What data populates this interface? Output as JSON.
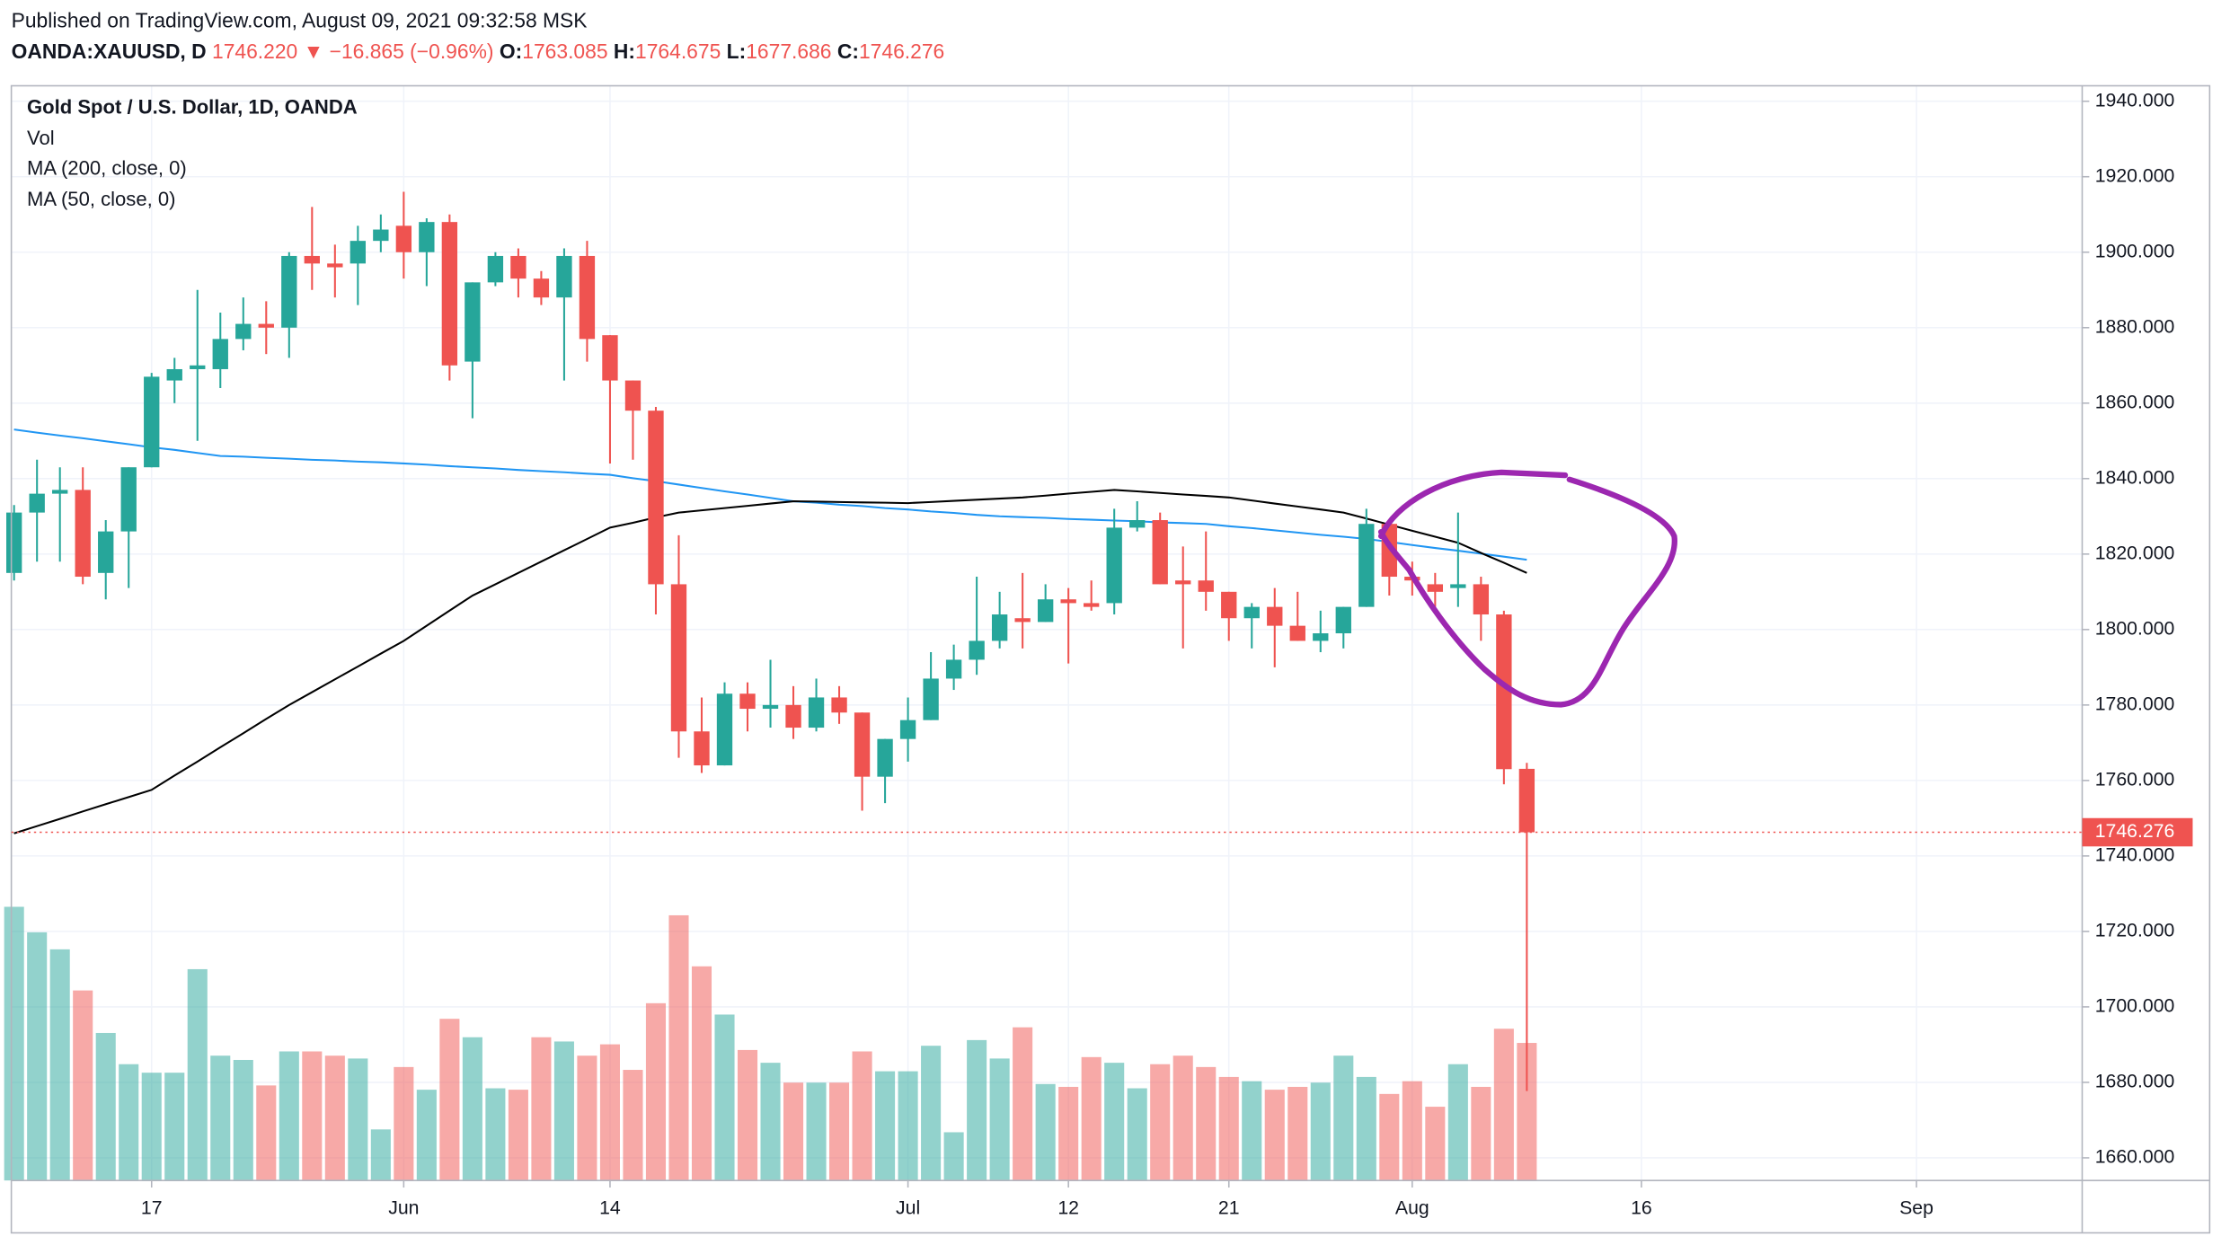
{
  "header": {
    "published": "Published on TradingView.com, August 09, 2021 09:32:58 MSK",
    "symbol": "OANDA:XAUUSD, D",
    "last": "1746.220",
    "arrow": "▼",
    "change": "−16.865 (−0.96%)",
    "o": "O:",
    "h": "H:",
    "l": "L:",
    "c": "C:"
  },
  "chart_data": {
    "type": "candlestick",
    "title": "Gold Spot / U.S. Dollar, 1D, OANDA",
    "volume_label": "Vol",
    "up_color": "#26a69a",
    "down_color": "#ef5350",
    "open": [
      1815,
      1831,
      1836,
      1837,
      1815,
      1826,
      1843,
      1866,
      1869,
      1869,
      1877,
      1881,
      1880,
      1899,
      1897,
      1897,
      1903,
      1907,
      1900,
      1908,
      1871,
      1892,
      1899,
      1893,
      1888,
      1899,
      1878,
      1866,
      1858,
      1812,
      1773,
      1764,
      1783,
      1779,
      1780,
      1774,
      1782,
      1778,
      1761,
      1771,
      1776,
      1787,
      1792,
      1797,
      1803,
      1802,
      1808,
      1807,
      1807,
      1827,
      1829,
      1813,
      1813,
      1810,
      1803,
      1806,
      1801,
      1797,
      1799,
      1806,
      1828,
      1814,
      1812,
      1811,
      1812,
      1804,
      1763.085
    ],
    "high": [
      1833,
      1845,
      1843,
      1843,
      1829,
      1843,
      1868,
      1872,
      1890,
      1884,
      1888,
      1887,
      1900,
      1912,
      1902,
      1907,
      1910,
      1916,
      1909,
      1910,
      1892,
      1900,
      1901,
      1895,
      1901,
      1903,
      1878,
      1866,
      1859,
      1825,
      1782,
      1786,
      1786,
      1792,
      1785,
      1787,
      1785,
      1778,
      1771,
      1782,
      1794,
      1796,
      1814,
      1810,
      1815,
      1812,
      1811,
      1813,
      1832,
      1834,
      1831,
      1822,
      1826,
      1810,
      1807,
      1811,
      1810,
      1805,
      1806,
      1832,
      1828,
      1818,
      1815,
      1831,
      1814,
      1805,
      1764.675
    ],
    "low": [
      1813,
      1818,
      1818,
      1812,
      1808,
      1811,
      1843,
      1860,
      1850,
      1864,
      1874,
      1873,
      1872,
      1890,
      1888,
      1886,
      1900,
      1893,
      1891,
      1866,
      1856,
      1891,
      1888,
      1886,
      1866,
      1871,
      1844,
      1845,
      1804,
      1766,
      1762,
      1764,
      1773,
      1774,
      1771,
      1773,
      1775,
      1752,
      1754,
      1765,
      1776,
      1784,
      1788,
      1795,
      1795,
      1802,
      1791,
      1805,
      1804,
      1826,
      1812,
      1795,
      1805,
      1797,
      1795,
      1790,
      1797,
      1794,
      1795,
      1806,
      1809,
      1809,
      1806,
      1806,
      1797,
      1759,
      1677.686
    ],
    "close": [
      1831,
      1836,
      1837,
      1814,
      1826,
      1843,
      1867,
      1869,
      1870,
      1877,
      1881,
      1880,
      1899,
      1897,
      1896,
      1903,
      1906,
      1900,
      1908,
      1870,
      1892,
      1899,
      1893,
      1888,
      1899,
      1877,
      1866,
      1858,
      1812,
      1773,
      1764,
      1783,
      1779,
      1780,
      1774,
      1782,
      1778,
      1761,
      1771,
      1776,
      1787,
      1792,
      1797,
      1804,
      1802,
      1808,
      1807,
      1806,
      1827,
      1829,
      1812,
      1812,
      1810,
      1803,
      1806,
      1801,
      1797,
      1799,
      1806,
      1828,
      1814,
      1813,
      1810,
      1812,
      1804,
      1763,
      1746.276
    ],
    "volume": [
      193,
      175,
      163,
      134,
      104,
      82,
      76,
      76,
      149,
      88,
      85,
      67,
      91,
      91,
      88,
      86,
      36,
      80,
      64,
      114,
      101,
      65,
      64,
      101,
      98,
      88,
      96,
      78,
      125,
      187,
      151,
      117,
      92,
      83,
      69,
      69,
      69,
      91,
      77,
      77,
      95,
      34,
      99,
      86,
      108,
      68,
      66,
      87,
      83,
      65,
      82,
      88,
      80,
      73,
      70,
      64,
      66,
      69,
      88,
      73,
      61,
      70,
      52,
      82,
      66,
      107,
      97
    ],
    "series": [
      {
        "name": "MA (200, close, 0)",
        "color": "#2196f3",
        "values": [
          1853,
          1852.2,
          1851.4,
          1850.7,
          1849.9,
          1849.1,
          1848.3,
          1847.6,
          1846.8,
          1846,
          1845.8,
          1845.5,
          1845.3,
          1845,
          1844.8,
          1844.5,
          1844.3,
          1844,
          1843.7,
          1843.3,
          1843,
          1842.7,
          1842.3,
          1842,
          1841.7,
          1841.3,
          1841,
          1840.1,
          1839.3,
          1838.4,
          1837.5,
          1836.6,
          1835.8,
          1834.9,
          1834,
          1833.6,
          1833.1,
          1832.7,
          1832.2,
          1831.8,
          1831.3,
          1830.9,
          1830.4,
          1830,
          1829.8,
          1829.6,
          1829.3,
          1829.1,
          1828.9,
          1828.7,
          1828.4,
          1828.2,
          1828,
          1827.4,
          1826.9,
          1826.3,
          1825.7,
          1825.1,
          1824.6,
          1824,
          1823.2,
          1822.4,
          1821.6,
          1820.9,
          1820.1,
          1819.3,
          1818.5
        ]
      },
      {
        "name": "MA (50, close, 0)",
        "color": "#000000",
        "values": [
          1746,
          1747.9,
          1749.8,
          1751.8,
          1753.7,
          1755.6,
          1757.5,
          1761.3,
          1765,
          1768.8,
          1772.5,
          1776.3,
          1780,
          1783.4,
          1786.8,
          1790.2,
          1793.6,
          1797,
          1801,
          1805,
          1809,
          1812,
          1815,
          1818,
          1821,
          1824,
          1827,
          1828.3,
          1829.7,
          1831,
          1831.6,
          1832.2,
          1832.8,
          1833.4,
          1834,
          1833.9,
          1833.8,
          1833.7,
          1833.6,
          1833.5,
          1833.8,
          1834.1,
          1834.4,
          1834.7,
          1835,
          1835.5,
          1836,
          1836.5,
          1837,
          1836.6,
          1836.2,
          1835.8,
          1835.4,
          1835,
          1834.2,
          1833.4,
          1832.6,
          1831.8,
          1831,
          1829.4,
          1827.8,
          1826.2,
          1824.6,
          1823,
          1820.3,
          1817.7,
          1815
        ]
      }
    ],
    "xlim": [
      -0.12,
      90.23
    ],
    "xticks": [
      {
        "value": 6,
        "label": "17"
      },
      {
        "value": 17,
        "label": "Jun"
      },
      {
        "value": 26,
        "label": "14"
      },
      {
        "value": 39,
        "label": "Jul"
      },
      {
        "value": 46,
        "label": "12"
      },
      {
        "value": 53,
        "label": "21"
      },
      {
        "value": 61,
        "label": "Aug"
      },
      {
        "value": 71,
        "label": "16"
      },
      {
        "value": 83,
        "label": "Sep"
      }
    ],
    "ylim": [
      1654,
      1944.1
    ],
    "yticks": [
      {
        "value": 1660,
        "label": "1660.000"
      },
      {
        "value": 1680,
        "label": "1680.000"
      },
      {
        "value": 1700,
        "label": "1700.000"
      },
      {
        "value": 1720,
        "label": "1720.000"
      },
      {
        "value": 1740,
        "label": "1740.000"
      },
      {
        "value": 1760,
        "label": "1760.000"
      },
      {
        "value": 1780,
        "label": "1780.000"
      },
      {
        "value": 1800,
        "label": "1800.000"
      },
      {
        "value": 1820,
        "label": "1820.000"
      },
      {
        "value": 1840,
        "label": "1840.000"
      },
      {
        "value": 1860,
        "label": "1860.000"
      },
      {
        "value": 1880,
        "label": "1880.000"
      },
      {
        "value": 1900,
        "label": "1900.000"
      },
      {
        "value": 1920,
        "label": "1920.000"
      },
      {
        "value": 1940,
        "label": "1940.000"
      }
    ],
    "grid": true
  }
}
